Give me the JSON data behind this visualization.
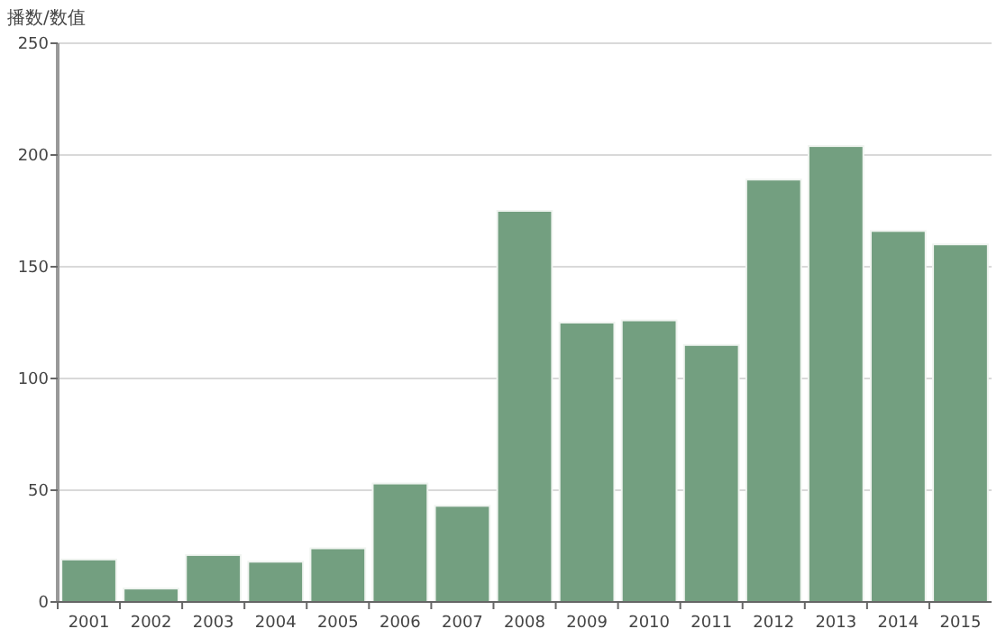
{
  "chart_data": {
    "type": "bar",
    "ylabel": "播数/数值",
    "categories": [
      "2001",
      "2002",
      "2003",
      "2004",
      "2005",
      "2006",
      "2007",
      "2008",
      "2009",
      "2010",
      "2011",
      "2012",
      "2013",
      "2014",
      "2015"
    ],
    "values": [
      19,
      6,
      21,
      18,
      24,
      53,
      43,
      175,
      125,
      126,
      115,
      189,
      204,
      166,
      160
    ],
    "color": "#739f80",
    "ylim": [
      0,
      250
    ],
    "yticks": [
      0,
      50,
      100,
      150,
      200,
      250
    ],
    "grid": "y"
  }
}
